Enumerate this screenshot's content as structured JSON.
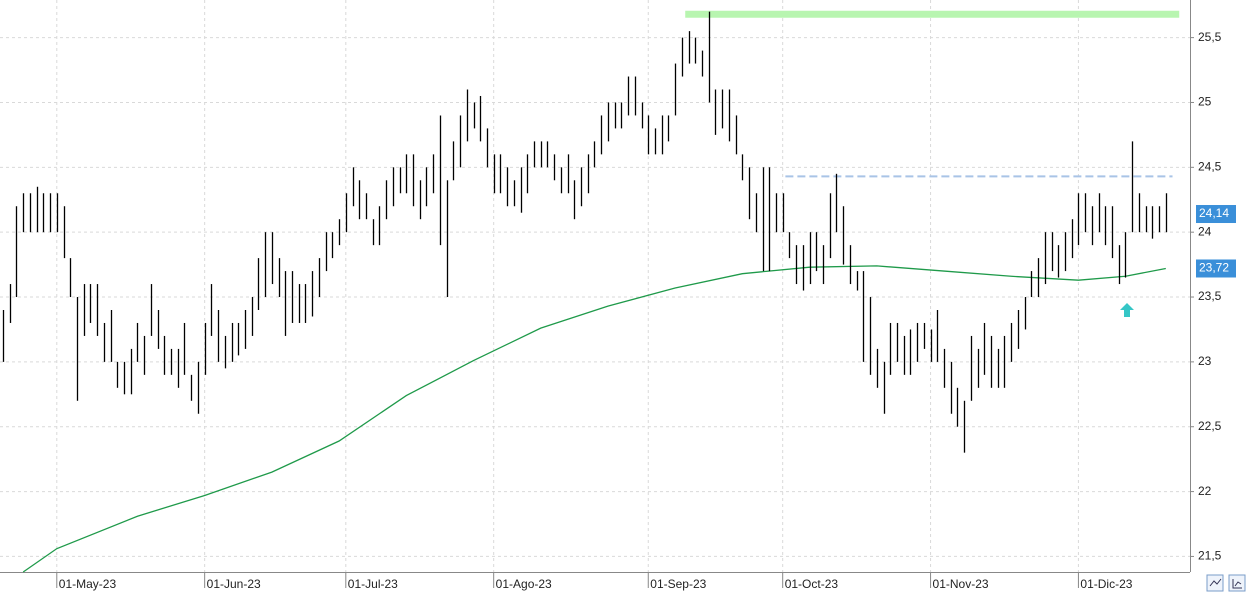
{
  "chart_data": {
    "type": "range-bar",
    "color": "#000000",
    "high": [
      23.4,
      23.6,
      24.2,
      24.3,
      24.3,
      24.35,
      24.3,
      24.3,
      24.3,
      24.2,
      23.8,
      23.5,
      23.6,
      23.6,
      23.6,
      23.3,
      23.4,
      23.0,
      23.0,
      23.1,
      23.3,
      23.2,
      23.6,
      23.4,
      23.2,
      23.1,
      23.1,
      23.3,
      22.9,
      23.0,
      23.3,
      23.6,
      23.4,
      23.2,
      23.3,
      23.3,
      23.4,
      23.5,
      23.8,
      24.0,
      24.0,
      23.8,
      23.7,
      23.7,
      23.6,
      23.6,
      23.7,
      23.8,
      24.0,
      24.0,
      24.1,
      24.3,
      24.5,
      24.4,
      24.3,
      24.1,
      24.2,
      24.4,
      24.5,
      24.5,
      24.6,
      24.6,
      24.4,
      24.5,
      24.6,
      24.9,
      24.4,
      24.7,
      24.9,
      25.1,
      25.0,
      25.05,
      24.8,
      24.6,
      24.6,
      24.5,
      24.4,
      24.5,
      24.6,
      24.7,
      24.7,
      24.7,
      24.6,
      24.5,
      24.6,
      24.4,
      24.5,
      24.6,
      24.7,
      24.9,
      25.0,
      25.0,
      25.0,
      25.2,
      25.2,
      25.0,
      24.9,
      24.8,
      24.9,
      24.9,
      25.3,
      25.5,
      25.55,
      25.5,
      25.4,
      25.7,
      25.1,
      25.1,
      25.1,
      24.9,
      24.6,
      24.5,
      24.3,
      24.5,
      24.5,
      24.3,
      24.3,
      24.0,
      23.9,
      23.9,
      24.0,
      24.0,
      23.9,
      24.3,
      24.45,
      24.2,
      23.9,
      23.7,
      23.7,
      23.5,
      23.1,
      23.0,
      23.3,
      23.3,
      23.2,
      23.25,
      23.3,
      23.3,
      23.25,
      23.4,
      23.1,
      23.0,
      22.8,
      22.7,
      23.2,
      23.1,
      23.3,
      23.2,
      23.1,
      23.2,
      23.3,
      23.4,
      23.5,
      23.7,
      23.8,
      24.0,
      24.0,
      23.9,
      24.0,
      24.1,
      24.3,
      24.3,
      24.2,
      24.3,
      24.2,
      24.2,
      23.9,
      24.0,
      24.7,
      24.3,
      24.2,
      24.2,
      24.2,
      24.3
    ],
    "low": [
      23.0,
      23.3,
      23.5,
      24.0,
      24.0,
      24.0,
      24.0,
      24.0,
      24.0,
      23.8,
      23.5,
      22.7,
      23.2,
      23.3,
      23.2,
      23.0,
      23.0,
      22.8,
      22.75,
      22.75,
      23.0,
      22.9,
      23.2,
      23.1,
      22.9,
      22.9,
      22.8,
      22.9,
      22.7,
      22.6,
      22.9,
      23.2,
      23.0,
      22.95,
      23.0,
      23.05,
      23.1,
      23.2,
      23.4,
      23.5,
      23.6,
      23.5,
      23.2,
      23.3,
      23.3,
      23.3,
      23.35,
      23.5,
      23.7,
      23.8,
      23.9,
      24.0,
      24.2,
      24.1,
      24.1,
      23.9,
      23.9,
      24.1,
      24.2,
      24.3,
      24.3,
      24.2,
      24.1,
      24.2,
      24.3,
      23.9,
      23.5,
      24.4,
      24.5,
      24.7,
      24.8,
      24.7,
      24.5,
      24.3,
      24.3,
      24.2,
      24.2,
      24.15,
      24.3,
      24.5,
      24.5,
      24.5,
      24.4,
      24.3,
      24.3,
      24.1,
      24.2,
      24.3,
      24.5,
      24.6,
      24.7,
      24.8,
      24.8,
      24.9,
      24.9,
      24.8,
      24.6,
      24.6,
      24.6,
      24.7,
      24.9,
      25.2,
      25.3,
      25.3,
      25.2,
      25.0,
      24.75,
      24.8,
      24.7,
      24.6,
      24.4,
      24.1,
      24.0,
      23.7,
      23.7,
      24.0,
      24.0,
      23.8,
      23.6,
      23.55,
      23.6,
      23.7,
      23.6,
      23.8,
      24.0,
      23.75,
      23.6,
      23.55,
      23.0,
      22.9,
      22.8,
      22.6,
      22.9,
      23.0,
      22.9,
      22.9,
      23.0,
      23.1,
      23.0,
      23.0,
      22.8,
      22.6,
      22.5,
      22.3,
      22.7,
      22.8,
      22.9,
      22.8,
      22.8,
      22.8,
      23.0,
      23.1,
      23.25,
      23.5,
      23.5,
      23.6,
      23.7,
      23.65,
      23.7,
      23.8,
      23.9,
      24.0,
      23.9,
      24.0,
      23.9,
      23.8,
      23.6,
      23.65,
      24.0,
      24.0,
      24.0,
      23.95,
      24.0,
      24.0
    ],
    "ma": {
      "color": "#1f9a4a",
      "x": [
        3,
        8,
        20,
        30,
        40,
        50,
        60,
        70,
        80,
        90,
        100,
        110,
        120,
        130,
        140,
        150,
        160,
        167,
        173
      ],
      "values": [
        21.38,
        21.56,
        21.81,
        21.97,
        22.15,
        22.39,
        22.74,
        23.01,
        23.26,
        23.43,
        23.57,
        23.68,
        23.73,
        23.74,
        23.7,
        23.66,
        23.63,
        23.66,
        23.72
      ]
    },
    "hlines": [
      {
        "value": 25.68,
        "x": [
          101.5,
          175
        ],
        "color": "#b8f5b0",
        "width": 7,
        "dashed": false
      },
      {
        "value": 24.43,
        "x": [
          116.4,
          174
        ],
        "color": "#a9c4e6",
        "width": 2,
        "dashed": true
      }
    ],
    "price_labels": [
      {
        "value": 24.14,
        "label": "24,14",
        "color": "#3a8fd9"
      },
      {
        "value": 23.72,
        "label": "23,72",
        "color": "#3a8fd9"
      }
    ],
    "xlim": [
      -0.45,
      176.6
    ],
    "ylim": [
      21.38,
      25.79
    ],
    "xticks": [
      {
        "value": 8,
        "label": "01-May-23"
      },
      {
        "value": 30,
        "label": "01-Jun-23"
      },
      {
        "value": 51,
        "label": "01-Jul-23"
      },
      {
        "value": 73,
        "label": "01-Ago-23"
      },
      {
        "value": 96,
        "label": "01-Sep-23"
      },
      {
        "value": 116,
        "label": "01-Oct-23"
      },
      {
        "value": 138,
        "label": "01-Nov-23"
      },
      {
        "value": 160,
        "label": "01-Dic-23"
      }
    ],
    "yticks": [
      {
        "value": 21.5,
        "label": "21,5"
      },
      22,
      {
        "value": 22.5,
        "label": "22,5"
      },
      23,
      {
        "value": 23.5,
        "label": "23,5"
      },
      24,
      {
        "value": 24.5,
        "label": "24,5"
      },
      25,
      {
        "value": 25.5,
        "label": "25,5"
      }
    ],
    "grid": true
  }
}
